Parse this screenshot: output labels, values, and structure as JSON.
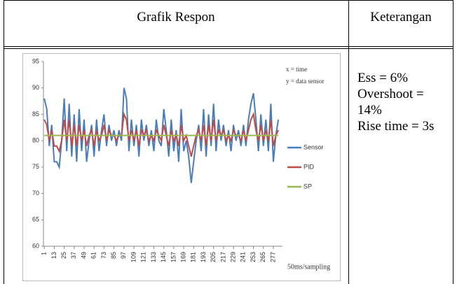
{
  "table": {
    "headers": [
      "Grafik Respon",
      "Keterangan"
    ],
    "notes": [
      "Ess = 6%",
      "Overshoot = 14%",
      "Rise time = 3s"
    ]
  },
  "chart_data": {
    "type": "line",
    "annotations": [
      "x = time",
      "y = data sensor"
    ],
    "x_label": "50ms/sampling",
    "x": [
      1,
      4,
      7,
      10,
      13,
      16,
      19,
      22,
      25,
      28,
      31,
      34,
      37,
      40,
      43,
      46,
      49,
      52,
      55,
      58,
      61,
      64,
      67,
      70,
      73,
      76,
      79,
      82,
      85,
      88,
      91,
      94,
      97,
      100,
      103,
      106,
      109,
      112,
      115,
      118,
      121,
      124,
      127,
      130,
      133,
      136,
      139,
      142,
      145,
      148,
      151,
      154,
      157,
      160,
      163,
      166,
      169,
      172,
      175,
      178,
      181,
      184,
      187,
      190,
      193,
      196,
      199,
      202,
      205,
      208,
      211,
      214,
      217,
      220,
      223,
      226,
      229,
      232,
      235,
      238,
      241,
      244,
      247,
      250,
      253,
      256,
      259,
      262,
      265,
      268,
      271,
      274,
      277,
      280,
      283
    ],
    "series": [
      {
        "name": "Sensor",
        "color": "#4a7ebb",
        "values": [
          88,
          86,
          79,
          83,
          76,
          76,
          75,
          80,
          88,
          78,
          87,
          77,
          85,
          76,
          86,
          78,
          84,
          76,
          80,
          83,
          77,
          84,
          78,
          82,
          85,
          79,
          83,
          80,
          82,
          79,
          82,
          80,
          90,
          88,
          78,
          84,
          79,
          83,
          77,
          84,
          80,
          83,
          79,
          82,
          78,
          84,
          80,
          79,
          86,
          82,
          77,
          84,
          78,
          82,
          76,
          86,
          78,
          80,
          77,
          72,
          76,
          80,
          83,
          78,
          86,
          77,
          85,
          79,
          87,
          78,
          84,
          80,
          83,
          79,
          82,
          78,
          83,
          80,
          82,
          79,
          83,
          79,
          84,
          87,
          89,
          84,
          78,
          85,
          79,
          84,
          78,
          87,
          76,
          81,
          84
        ]
      },
      {
        "name": "PID",
        "color": "#be4b48",
        "values": [
          84,
          83,
          80,
          82,
          79,
          79,
          78,
          80,
          84,
          80,
          84,
          79,
          83,
          79,
          83,
          80,
          82,
          79,
          81,
          82,
          79,
          82,
          80,
          81,
          83,
          80,
          82,
          81,
          81,
          80,
          81,
          81,
          85,
          84,
          80,
          82,
          80,
          82,
          79,
          82,
          81,
          82,
          80,
          81,
          80,
          82,
          81,
          80,
          83,
          81,
          79,
          82,
          80,
          81,
          79,
          83,
          80,
          81,
          79,
          77,
          79,
          81,
          82,
          80,
          83,
          79,
          83,
          80,
          84,
          80,
          82,
          81,
          82,
          80,
          81,
          80,
          82,
          81,
          81,
          80,
          82,
          80,
          82,
          84,
          85,
          82,
          80,
          83,
          80,
          82,
          80,
          84,
          79,
          81,
          82
        ]
      },
      {
        "name": "SP",
        "color": "#98b954",
        "values": [
          81,
          81,
          81,
          81,
          81,
          81,
          81,
          81,
          81,
          81,
          81,
          81,
          81,
          81,
          81,
          81,
          81,
          81,
          81,
          81,
          81,
          81,
          81,
          81,
          81,
          81,
          81,
          81,
          81,
          81,
          81,
          81,
          81,
          81,
          81,
          81,
          81,
          81,
          81,
          81,
          81,
          81,
          81,
          81,
          81,
          81,
          81,
          81,
          81,
          81,
          81,
          81,
          81,
          81,
          81,
          81,
          81,
          81,
          81,
          81,
          81,
          81,
          81,
          81,
          81,
          81,
          81,
          81,
          81,
          81,
          81,
          81,
          81,
          81,
          81,
          81,
          81,
          81,
          81,
          81,
          81,
          81,
          81,
          81,
          81,
          81,
          81,
          81,
          81,
          81,
          81,
          81,
          81,
          81,
          81
        ]
      }
    ],
    "xlim": [
      0,
      288
    ],
    "xticks": [
      1,
      13,
      25,
      37,
      49,
      61,
      73,
      85,
      97,
      109,
      121,
      133,
      145,
      157,
      169,
      181,
      193,
      205,
      217,
      229,
      241,
      253,
      265,
      277
    ],
    "ylim": [
      60,
      95
    ],
    "yticks": [
      60,
      65,
      70,
      75,
      80,
      85,
      90,
      95
    ]
  }
}
